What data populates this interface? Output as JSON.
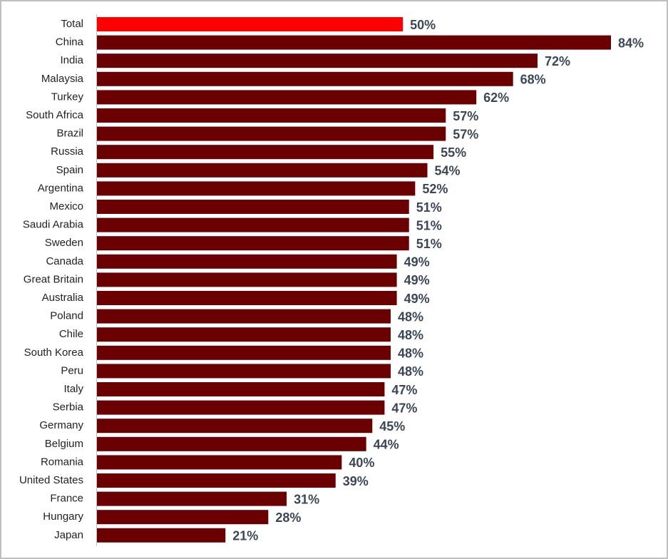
{
  "chart_data": {
    "type": "barh",
    "categories": [
      "Total",
      "China",
      "India",
      "Malaysia",
      "Turkey",
      "South Africa",
      "Brazil",
      "Russia",
      "Spain",
      "Argentina",
      "Mexico",
      "Saudi Arabia",
      "Sweden",
      "Canada",
      "Great Britain",
      "Australia",
      "Poland",
      "Chile",
      "South Korea",
      "Peru",
      "Italy",
      "Serbia",
      "Germany",
      "Belgium",
      "Romania",
      "United States",
      "France",
      "Hungary",
      "Japan"
    ],
    "values": [
      50,
      84,
      72,
      68,
      62,
      57,
      57,
      55,
      54,
      52,
      51,
      51,
      51,
      49,
      49,
      49,
      48,
      48,
      48,
      48,
      47,
      47,
      45,
      44,
      40,
      39,
      31,
      28,
      21
    ],
    "value_labels": [
      "50%",
      "84%",
      "72%",
      "68%",
      "62%",
      "57%",
      "57%",
      "55%",
      "54%",
      "52%",
      "51%",
      "51%",
      "51%",
      "49%",
      "49%",
      "49%",
      "48%",
      "48%",
      "48%",
      "48%",
      "47%",
      "47%",
      "45%",
      "44%",
      "40%",
      "39%",
      "31%",
      "28%",
      "21%"
    ],
    "colors": [
      "#ff0000",
      "#6b0000",
      "#6b0000",
      "#6b0000",
      "#6b0000",
      "#6b0000",
      "#6b0000",
      "#6b0000",
      "#6b0000",
      "#6b0000",
      "#6b0000",
      "#6b0000",
      "#6b0000",
      "#6b0000",
      "#6b0000",
      "#6b0000",
      "#6b0000",
      "#6b0000",
      "#6b0000",
      "#6b0000",
      "#6b0000",
      "#6b0000",
      "#6b0000",
      "#6b0000",
      "#6b0000",
      "#6b0000",
      "#6b0000",
      "#6b0000",
      "#6b0000"
    ]
  }
}
